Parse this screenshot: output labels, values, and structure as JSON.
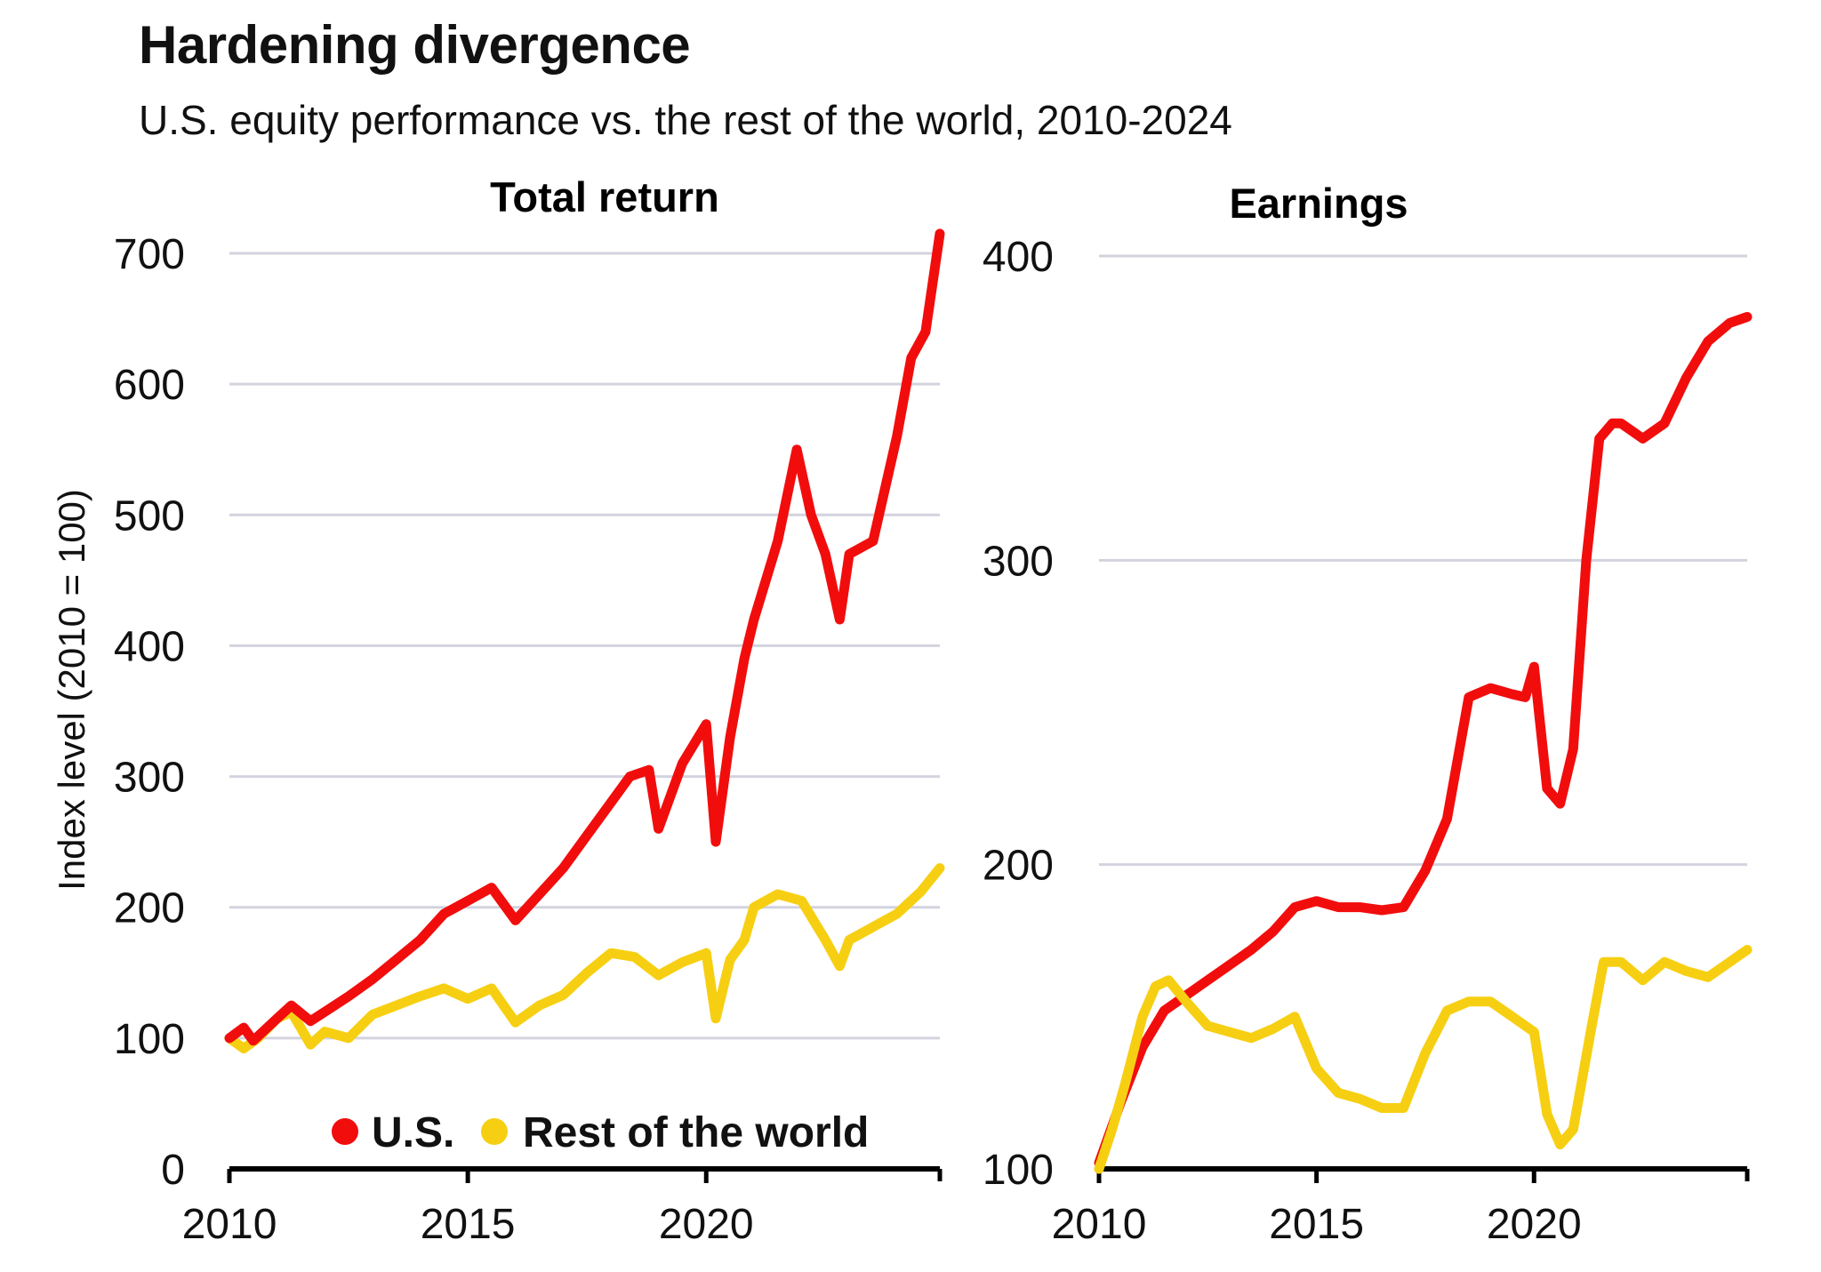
{
  "title": "Hardening divergence",
  "subtitle": "U.S. equity performance vs. the rest of the world, 2010-2024",
  "colors": {
    "us": "#f20d0d",
    "row": "#f7cf12",
    "grid": "#d3d3df",
    "axis": "#000000"
  },
  "chart_data": [
    {
      "type": "line",
      "title": "Total return",
      "ylabel": "Index level (2010 = 100)",
      "xlabel": "",
      "xlim": [
        2010,
        2024.9
      ],
      "ylim": [
        0,
        700
      ],
      "xticks": [
        2010,
        2015,
        2020
      ],
      "yticks": [
        0,
        100,
        200,
        300,
        400,
        500,
        600,
        700
      ],
      "grid": "horizontal",
      "legend": {
        "position": "bottom-right",
        "entries": [
          "U.S.",
          "Rest of the world"
        ]
      },
      "series": [
        {
          "name": "U.S.",
          "x": [
            2010,
            2010.3,
            2010.5,
            2011,
            2011.3,
            2011.7,
            2012,
            2012.5,
            2013,
            2013.5,
            2014,
            2014.5,
            2015,
            2015.5,
            2016,
            2016.5,
            2017,
            2017.5,
            2018,
            2018.4,
            2018.8,
            2019,
            2019.5,
            2020,
            2020.2,
            2020.5,
            2020.8,
            2021,
            2021.5,
            2021.9,
            2022.2,
            2022.5,
            2022.8,
            2023,
            2023.5,
            2024,
            2024.3,
            2024.6,
            2024.9
          ],
          "y": [
            100,
            108,
            98,
            115,
            125,
            113,
            120,
            132,
            145,
            160,
            175,
            195,
            205,
            215,
            190,
            210,
            230,
            255,
            280,
            300,
            305,
            260,
            310,
            340,
            250,
            330,
            390,
            420,
            480,
            550,
            500,
            470,
            420,
            470,
            480,
            560,
            620,
            640,
            715
          ]
        },
        {
          "name": "Rest of the world",
          "x": [
            2010,
            2010.3,
            2010.6,
            2011,
            2011.3,
            2011.7,
            2012,
            2012.5,
            2013,
            2013.5,
            2014,
            2014.5,
            2015,
            2015.5,
            2016,
            2016.5,
            2017,
            2017.5,
            2018,
            2018.5,
            2019,
            2019.5,
            2020,
            2020.2,
            2020.5,
            2020.8,
            2021,
            2021.5,
            2022,
            2022.5,
            2022.8,
            2023,
            2023.5,
            2024,
            2024.5,
            2024.9
          ],
          "y": [
            100,
            92,
            100,
            115,
            120,
            95,
            105,
            100,
            118,
            125,
            132,
            138,
            130,
            138,
            112,
            125,
            133,
            150,
            165,
            162,
            148,
            158,
            165,
            115,
            160,
            175,
            200,
            210,
            205,
            175,
            155,
            175,
            185,
            195,
            212,
            230
          ]
        }
      ]
    },
    {
      "type": "line",
      "title": "Earnings",
      "xlabel": "",
      "xlim": [
        2010,
        2024.9
      ],
      "ylim": [
        100,
        400
      ],
      "xticks": [
        2010,
        2015,
        2020
      ],
      "yticks": [
        100,
        200,
        300,
        400
      ],
      "grid": "horizontal",
      "series": [
        {
          "name": "U.S.",
          "x": [
            2010,
            2010.5,
            2011,
            2011.5,
            2012,
            2012.5,
            2013,
            2013.5,
            2014,
            2014.5,
            2015,
            2015.5,
            2016,
            2016.5,
            2017,
            2017.5,
            2018,
            2018.5,
            2019,
            2019.5,
            2019.8,
            2020,
            2020.3,
            2020.6,
            2020.9,
            2021.2,
            2021.5,
            2021.8,
            2022,
            2022.5,
            2023,
            2023.5,
            2024,
            2024.5,
            2024.9
          ],
          "y": [
            102,
            122,
            140,
            152,
            157,
            162,
            167,
            172,
            178,
            186,
            188,
            186,
            186,
            185,
            186,
            198,
            215,
            255,
            258,
            256,
            255,
            265,
            225,
            220,
            238,
            300,
            340,
            345,
            345,
            340,
            345,
            360,
            372,
            378,
            380
          ]
        },
        {
          "name": "Rest of the world",
          "x": [
            2010,
            2010.3,
            2010.6,
            2011,
            2011.3,
            2011.6,
            2012,
            2012.5,
            2013,
            2013.5,
            2014,
            2014.5,
            2015,
            2015.5,
            2016,
            2016.5,
            2017,
            2017.5,
            2018,
            2018.5,
            2019,
            2019.5,
            2020,
            2020.3,
            2020.6,
            2020.9,
            2021.3,
            2021.6,
            2022,
            2022.5,
            2023,
            2023.5,
            2024,
            2024.5,
            2024.9
          ],
          "y": [
            100,
            113,
            128,
            150,
            160,
            162,
            155,
            147,
            145,
            143,
            146,
            150,
            133,
            125,
            123,
            120,
            120,
            138,
            152,
            155,
            155,
            150,
            145,
            118,
            108,
            113,
            145,
            168,
            168,
            162,
            168,
            165,
            163,
            168,
            172
          ]
        }
      ]
    }
  ]
}
